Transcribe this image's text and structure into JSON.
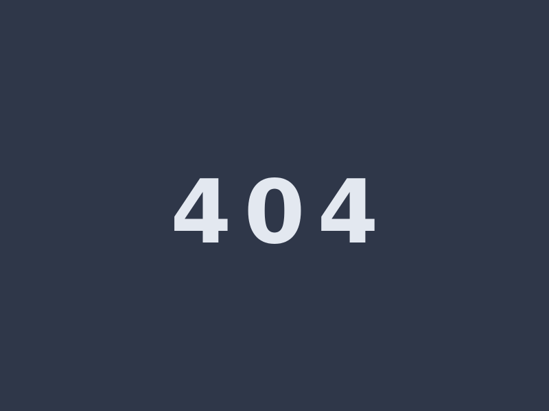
{
  "error": {
    "code": "404"
  },
  "colors": {
    "background": "#2f3749",
    "text": "#e3e8f0"
  }
}
